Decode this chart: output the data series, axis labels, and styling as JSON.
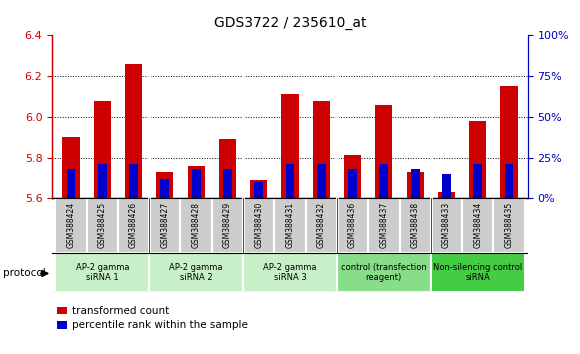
{
  "title": "GDS3722 / 235610_at",
  "samples": [
    "GSM388424",
    "GSM388425",
    "GSM388426",
    "GSM388427",
    "GSM388428",
    "GSM388429",
    "GSM388430",
    "GSM388431",
    "GSM388432",
    "GSM388436",
    "GSM388437",
    "GSM388438",
    "GSM388433",
    "GSM388434",
    "GSM388435"
  ],
  "transformed_count": [
    5.9,
    6.08,
    6.26,
    5.73,
    5.76,
    5.89,
    5.69,
    6.11,
    6.08,
    5.81,
    6.06,
    5.73,
    5.63,
    5.98,
    6.15
  ],
  "percentile_rank": [
    18,
    21,
    21,
    12,
    18,
    18,
    10,
    21,
    21,
    18,
    21,
    18,
    15,
    21,
    21
  ],
  "bar_color": "#cc0000",
  "pct_color": "#0000cc",
  "ylim_left": [
    5.6,
    6.4
  ],
  "ylim_right": [
    0,
    100
  ],
  "yticks_left": [
    5.6,
    5.8,
    6.0,
    6.2,
    6.4
  ],
  "yticks_right": [
    0,
    25,
    50,
    75,
    100
  ],
  "groups": [
    {
      "label": "AP-2 gamma\nsiRNA 1",
      "indices": [
        0,
        1,
        2
      ],
      "color": "#c8f0c8"
    },
    {
      "label": "AP-2 gamma\nsiRNA 2",
      "indices": [
        3,
        4,
        5
      ],
      "color": "#c8f0c8"
    },
    {
      "label": "AP-2 gamma\nsiRNA 3",
      "indices": [
        6,
        7,
        8
      ],
      "color": "#c8f0c8"
    },
    {
      "label": "control (transfection\nreagent)",
      "indices": [
        9,
        10,
        11
      ],
      "color": "#88dd88"
    },
    {
      "label": "Non-silencing control\nsiRNA",
      "indices": [
        12,
        13,
        14
      ],
      "color": "#44cc44"
    }
  ],
  "protocol_label": "protocol",
  "legend1": "transformed count",
  "legend2": "percentile rank within the sample",
  "bar_width": 0.55,
  "pct_bar_width": 0.28,
  "baseline": 5.6,
  "tick_color_left": "#cc0000",
  "tick_color_right": "#0000bb",
  "sample_box_color": "#cccccc",
  "grid_yticks": [
    5.8,
    6.0,
    6.2
  ]
}
